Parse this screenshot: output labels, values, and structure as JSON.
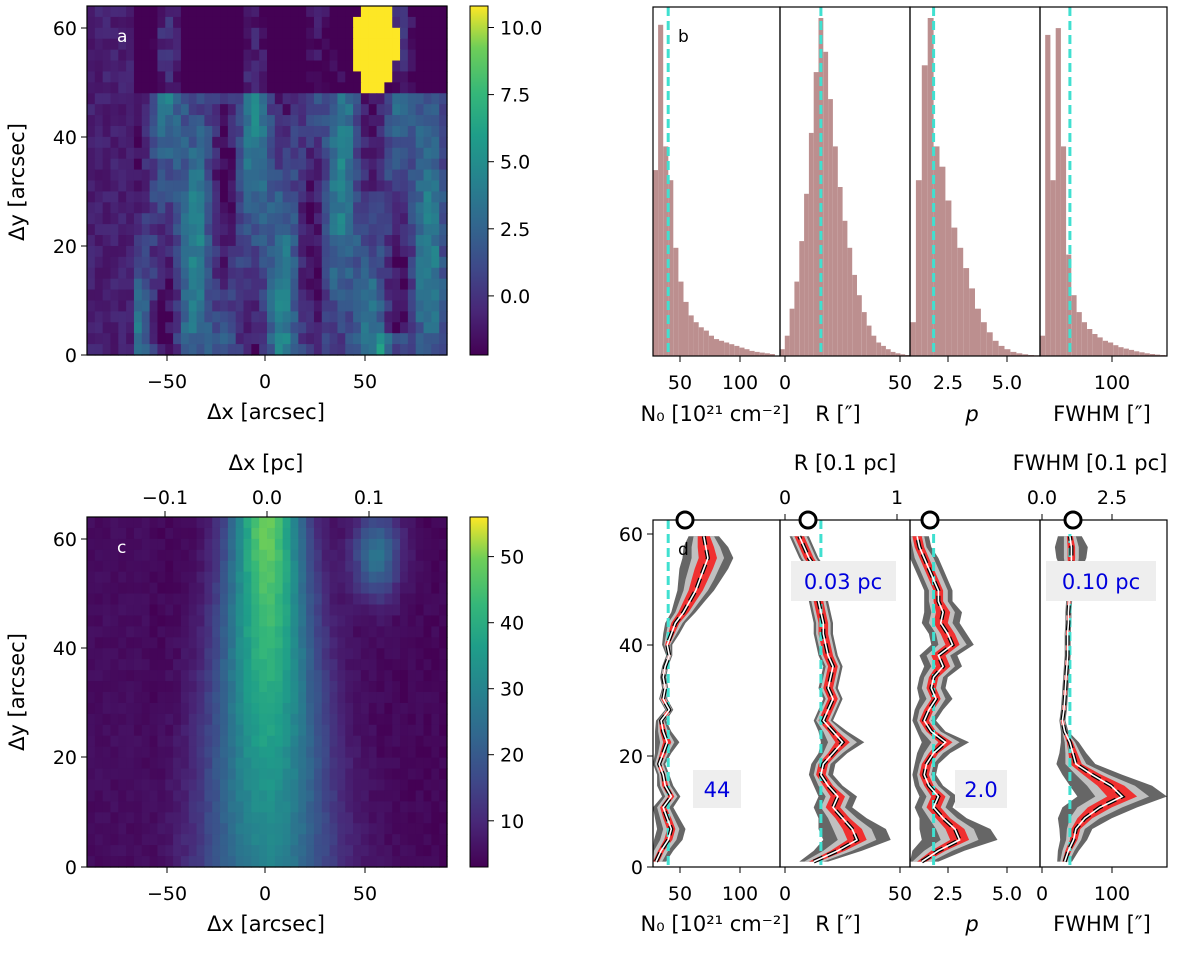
{
  "chart_data": [
    {
      "panel": "a",
      "type": "heatmap",
      "panel_label": "a",
      "xlabel": "Δx [arcsec]",
      "ylabel": "Δy [arcsec]",
      "xlim": [
        -90,
        90
      ],
      "ylim": [
        0,
        64
      ],
      "xticks": [
        "−50",
        "0",
        "50"
      ],
      "yticks": [
        "0",
        "20",
        "40",
        "60"
      ],
      "colorbar": {
        "vmin": -2.2,
        "vmax": 10.8,
        "ticks": [
          "0.0",
          "2.5",
          "5.0",
          "7.5",
          "10.0"
        ],
        "tick_values": [
          0,
          2.5,
          5,
          7.5,
          10
        ]
      },
      "features": [
        {
          "description": "bright saturated blob",
          "x": 54,
          "y": 57,
          "value": 11
        },
        {
          "description": "oblique striated filaments",
          "value_range": [
            0,
            5
          ]
        }
      ]
    },
    {
      "panel": "b",
      "type": "bar",
      "panel_label": "b",
      "subpanels": [
        {
          "xlabel": "N₀ [10²¹ cm⁻²]",
          "xlim": [
            30,
            155
          ],
          "xticks": [
            "50",
            "100"
          ],
          "median_line": 45,
          "bins": [
            30,
            35,
            40,
            45,
            50,
            55,
            60,
            65,
            70,
            75,
            80,
            85,
            90,
            95,
            100,
            105,
            110,
            115,
            120,
            125,
            130,
            135,
            140,
            145,
            150
          ],
          "counts": [
            0.55,
            0.98,
            0.62,
            0.52,
            0.32,
            0.22,
            0.16,
            0.12,
            0.1,
            0.085,
            0.075,
            0.06,
            0.05,
            0.045,
            0.04,
            0.035,
            0.03,
            0.025,
            0.02,
            0.015,
            0.012,
            0.01,
            0.008,
            0.006
          ]
        },
        {
          "xlabel": "R [″]",
          "xlim": [
            -2,
            52
          ],
          "xticks": [
            "0",
            "50"
          ],
          "median_line": 15,
          "bins": [
            -2,
            0,
            2,
            4,
            6,
            8,
            10,
            12,
            14,
            16,
            18,
            20,
            22,
            24,
            26,
            28,
            30,
            32,
            34,
            36,
            38,
            40,
            42,
            44,
            46,
            48,
            50,
            52
          ],
          "counts": [
            0.02,
            0.06,
            0.14,
            0.22,
            0.34,
            0.48,
            0.66,
            0.84,
            1.0,
            0.9,
            0.76,
            0.62,
            0.5,
            0.4,
            0.32,
            0.24,
            0.18,
            0.13,
            0.09,
            0.06,
            0.04,
            0.03,
            0.02,
            0.012,
            0.008,
            0.005,
            0.003
          ]
        },
        {
          "xlabel": "p",
          "xlim": [
            1.0,
            6.5
          ],
          "xticks": [
            "2.5",
            "5.0"
          ],
          "median_line": 2.0,
          "bins": [
            1.0,
            1.25,
            1.5,
            1.75,
            2.0,
            2.25,
            2.5,
            2.75,
            3.0,
            3.25,
            3.5,
            3.75,
            4.0,
            4.25,
            4.5,
            4.75,
            5.0,
            5.25,
            5.5,
            5.75,
            6.0,
            6.25,
            6.5
          ],
          "counts": [
            0.1,
            0.52,
            0.86,
            1.0,
            0.62,
            0.56,
            0.46,
            0.38,
            0.32,
            0.26,
            0.2,
            0.14,
            0.1,
            0.07,
            0.045,
            0.03,
            0.02,
            0.012,
            0.008,
            0.005,
            0.003,
            0.002
          ]
        },
        {
          "xlabel": "FWHM [″]",
          "xlim": [
            0,
            170
          ],
          "xticks": [
            "100"
          ],
          "median_line": 40,
          "bins": [
            0,
            7,
            14,
            21,
            28,
            35,
            42,
            49,
            56,
            63,
            70,
            77,
            84,
            91,
            98,
            105,
            112,
            119,
            126,
            133,
            140,
            147,
            154,
            161,
            168
          ],
          "counts": [
            0.06,
            0.95,
            0.52,
            0.97,
            0.62,
            0.3,
            0.18,
            0.13,
            0.1,
            0.08,
            0.065,
            0.055,
            0.045,
            0.04,
            0.032,
            0.026,
            0.022,
            0.018,
            0.014,
            0.011,
            0.008,
            0.006,
            0.004,
            0.003
          ]
        }
      ]
    },
    {
      "panel": "c",
      "type": "heatmap",
      "panel_label": "c",
      "xlabel": "Δx [arcsec]",
      "ylabel": "Δy [arcsec]",
      "top_xlabel": "Δx [pc]",
      "top_xticks": [
        "−0.1",
        "0.0",
        "0.1"
      ],
      "xlim": [
        -90,
        90
      ],
      "ylim": [
        0,
        64
      ],
      "xticks": [
        "−50",
        "0",
        "50"
      ],
      "yticks": [
        "0",
        "20",
        "40",
        "60"
      ],
      "colorbar": {
        "vmin": 3,
        "vmax": 56,
        "ticks": [
          "10",
          "20",
          "30",
          "40",
          "50"
        ],
        "tick_values": [
          10,
          20,
          30,
          40,
          50
        ]
      },
      "features": [
        {
          "description": "central vertical filament ridge",
          "x": 0,
          "peak_value": 56
        },
        {
          "description": "secondary blob",
          "x": 55,
          "y": 57,
          "value": 32
        }
      ]
    },
    {
      "panel": "d",
      "type": "line",
      "panel_label": "d",
      "ylabel": "Δy [arcsec]",
      "ylim": [
        0,
        64
      ],
      "yticks": [
        "0",
        "20",
        "40",
        "60"
      ],
      "subpanels": [
        {
          "xlabel": "N₀ [10²¹ cm⁻²]",
          "xlim": [
            30,
            155
          ],
          "xticks": [
            "50",
            "100"
          ],
          "median_line": 45,
          "annotation": "44",
          "y": [
            1,
            3,
            5,
            7,
            9,
            11,
            13,
            15,
            17,
            19,
            21,
            23,
            25,
            27,
            29,
            31,
            33,
            35,
            37,
            39,
            41,
            43,
            45,
            47,
            49,
            51,
            53,
            55,
            57,
            59,
            61
          ],
          "median": [
            33,
            38,
            45,
            48,
            44,
            40,
            48,
            42,
            40,
            36,
            40,
            44,
            40,
            38,
            46,
            40,
            42,
            40,
            42,
            46,
            44,
            48,
            52,
            60,
            66,
            72,
            76,
            80,
            84,
            82,
            80
          ],
          "inner": [
            3,
            3,
            4,
            4,
            4,
            3,
            3,
            3,
            2,
            2,
            3,
            4,
            3,
            2,
            2,
            2,
            1,
            1,
            1,
            1,
            2,
            3,
            4,
            5,
            6,
            7,
            8,
            9,
            9,
            8,
            6
          ],
          "mid": [
            6,
            7,
            8,
            8,
            7,
            6,
            6,
            5,
            4,
            4,
            5,
            7,
            5,
            3,
            3,
            3,
            2,
            2,
            2,
            2,
            3,
            5,
            7,
            8,
            10,
            12,
            14,
            15,
            16,
            14,
            10
          ],
          "outer": [
            10,
            12,
            14,
            14,
            12,
            10,
            9,
            8,
            6,
            6,
            8,
            12,
            8,
            5,
            4,
            4,
            3,
            3,
            3,
            3,
            5,
            8,
            10,
            12,
            15,
            18,
            21,
            24,
            25,
            22,
            15
          ]
        },
        {
          "xlabel": "R [″]",
          "xlim": [
            -2,
            52
          ],
          "xticks": [
            "0",
            "50"
          ],
          "median_line": 15,
          "annotation": "0.03 pc",
          "top_xlabel": "R [0.1 pc]",
          "top_xticks": [
            "0",
            "1"
          ],
          "y": [
            1,
            3,
            5,
            7,
            9,
            11,
            13,
            15,
            17,
            19,
            21,
            23,
            25,
            27,
            29,
            31,
            33,
            35,
            37,
            39,
            41,
            43,
            45,
            47,
            49,
            51,
            53,
            55,
            57,
            59,
            61
          ],
          "median": [
            12,
            22,
            30,
            28,
            24,
            20,
            22,
            18,
            15,
            16,
            20,
            24,
            20,
            16,
            18,
            20,
            18,
            19,
            20,
            18,
            17,
            16,
            16,
            15,
            14,
            15,
            14,
            13,
            10,
            8,
            6
          ],
          "inner": [
            2,
            3,
            4,
            4,
            3,
            3,
            3,
            2,
            2,
            2,
            2,
            3,
            2,
            2,
            2,
            2,
            2,
            2,
            2,
            2,
            2,
            2,
            2,
            2,
            2,
            2,
            2,
            2,
            2,
            2,
            2
          ],
          "mid": [
            4,
            6,
            8,
            8,
            6,
            5,
            5,
            4,
            3,
            3,
            4,
            6,
            4,
            3,
            3,
            3,
            3,
            3,
            3,
            3,
            3,
            3,
            3,
            3,
            3,
            3,
            3,
            3,
            3,
            3,
            3
          ],
          "outer": [
            6,
            10,
            14,
            14,
            10,
            8,
            8,
            6,
            5,
            5,
            6,
            9,
            6,
            4,
            4,
            4,
            4,
            4,
            4,
            4,
            4,
            4,
            4,
            4,
            4,
            4,
            4,
            4,
            4,
            4,
            4
          ]
        },
        {
          "xlabel": "p",
          "xlim": [
            1.0,
            6.5
          ],
          "xticks": [
            "2.5",
            "5.0"
          ],
          "median_line": 2.0,
          "annotation": "2.0",
          "y": [
            1,
            3,
            5,
            7,
            9,
            11,
            13,
            15,
            17,
            19,
            21,
            23,
            25,
            27,
            29,
            31,
            33,
            35,
            37,
            39,
            41,
            43,
            45,
            47,
            49,
            51,
            53,
            55,
            57,
            59,
            61
          ],
          "median": [
            1.5,
            2.2,
            3.1,
            2.9,
            2.4,
            2.0,
            2.2,
            1.8,
            1.6,
            1.7,
            2.0,
            2.5,
            1.9,
            1.6,
            1.8,
            2.1,
            1.9,
            2.0,
            2.4,
            2.2,
            2.8,
            2.6,
            2.3,
            2.4,
            2.2,
            2.2,
            2.0,
            1.8,
            1.6,
            1.4,
            1.3
          ],
          "inner": [
            0.2,
            0.3,
            0.4,
            0.4,
            0.3,
            0.3,
            0.3,
            0.2,
            0.2,
            0.2,
            0.2,
            0.3,
            0.2,
            0.2,
            0.2,
            0.2,
            0.2,
            0.2,
            0.3,
            0.3,
            0.3,
            0.3,
            0.3,
            0.3,
            0.2,
            0.2,
            0.2,
            0.2,
            0.2,
            0.2,
            0.2
          ],
          "mid": [
            0.4,
            0.6,
            0.8,
            0.8,
            0.6,
            0.5,
            0.5,
            0.4,
            0.3,
            0.3,
            0.4,
            0.6,
            0.4,
            0.3,
            0.4,
            0.4,
            0.4,
            0.4,
            0.5,
            0.5,
            0.6,
            0.5,
            0.5,
            0.5,
            0.4,
            0.4,
            0.4,
            0.4,
            0.4,
            0.3,
            0.3
          ],
          "outer": [
            0.7,
            1.1,
            1.6,
            1.5,
            1.0,
            0.8,
            0.8,
            0.6,
            0.5,
            0.5,
            0.7,
            1.0,
            0.6,
            0.5,
            0.6,
            0.7,
            0.6,
            0.6,
            0.8,
            0.8,
            0.9,
            0.8,
            0.8,
            0.8,
            0.6,
            0.6,
            0.6,
            0.6,
            0.6,
            0.5,
            0.5
          ]
        },
        {
          "xlabel": "FWHM [″]",
          "xlim": [
            0,
            170
          ],
          "xticks": [
            "0",
            "100"
          ],
          "median_line": 40,
          "annotation": "0.10 pc",
          "top_xlabel": "FWHM [0.1 pc]",
          "top_xticks": [
            "0.0",
            "2.5"
          ],
          "y": [
            1,
            3,
            5,
            7,
            9,
            11,
            13,
            15,
            17,
            19,
            21,
            23,
            25,
            27,
            29,
            31,
            33,
            35,
            37,
            39,
            41,
            43,
            45,
            47,
            49,
            51,
            53,
            55,
            57,
            59,
            61
          ],
          "median": [
            33,
            38,
            45,
            48,
            60,
            80,
            110,
            95,
            70,
            48,
            44,
            40,
            33,
            30,
            32,
            33,
            34,
            35,
            36,
            37,
            37,
            37,
            38,
            38,
            39,
            39,
            40,
            42,
            42,
            42,
            40
          ],
          "inner": [
            3,
            4,
            5,
            6,
            10,
            16,
            20,
            18,
            12,
            8,
            6,
            4,
            2,
            2,
            2,
            2,
            2,
            2,
            2,
            2,
            2,
            2,
            2,
            2,
            2,
            2,
            3,
            4,
            5,
            5,
            4
          ],
          "mid": [
            6,
            8,
            10,
            12,
            20,
            30,
            36,
            32,
            22,
            14,
            10,
            7,
            3,
            3,
            3,
            3,
            3,
            3,
            3,
            3,
            3,
            3,
            3,
            3,
            3,
            3,
            5,
            8,
            10,
            10,
            8
          ],
          "outer": [
            10,
            14,
            18,
            22,
            36,
            50,
            60,
            55,
            40,
            26,
            18,
            12,
            5,
            4,
            4,
            4,
            4,
            4,
            4,
            4,
            4,
            4,
            4,
            4,
            4,
            4,
            8,
            14,
            20,
            22,
            16
          ]
        }
      ]
    }
  ]
}
